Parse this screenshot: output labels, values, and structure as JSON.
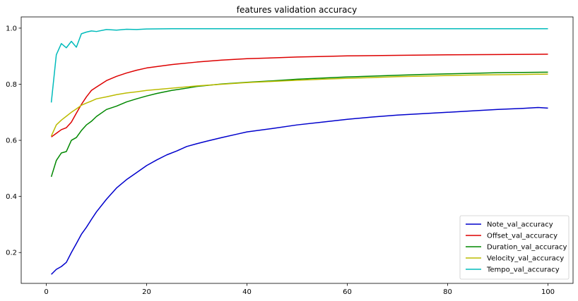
{
  "chart_data": {
    "type": "line",
    "title": "features validation accuracy",
    "xlabel": "",
    "ylabel": "",
    "xlim": [
      -5,
      105
    ],
    "ylim": [
      0.09,
      1.04
    ],
    "xticks": [
      0,
      20,
      40,
      60,
      80,
      100
    ],
    "yticks": [
      0.2,
      0.4,
      0.6,
      0.8,
      1.0
    ],
    "ytick_labels": [
      "0.2",
      "0.4",
      "0.6",
      "0.8",
      "1.0"
    ],
    "grid": false,
    "legend_position": "lower-right",
    "series": [
      {
        "name": "Note_val_accuracy",
        "color": "#0000cc",
        "points": [
          [
            1,
            0.122
          ],
          [
            2,
            0.14
          ],
          [
            3,
            0.15
          ],
          [
            4,
            0.165
          ],
          [
            5,
            0.2
          ],
          [
            6,
            0.232
          ],
          [
            7,
            0.265
          ],
          [
            8,
            0.29
          ],
          [
            9,
            0.318
          ],
          [
            10,
            0.345
          ],
          [
            12,
            0.39
          ],
          [
            14,
            0.43
          ],
          [
            16,
            0.46
          ],
          [
            18,
            0.485
          ],
          [
            20,
            0.51
          ],
          [
            22,
            0.53
          ],
          [
            24,
            0.548
          ],
          [
            26,
            0.562
          ],
          [
            28,
            0.578
          ],
          [
            30,
            0.588
          ],
          [
            32,
            0.597
          ],
          [
            35,
            0.61
          ],
          [
            38,
            0.622
          ],
          [
            40,
            0.63
          ],
          [
            45,
            0.642
          ],
          [
            50,
            0.655
          ],
          [
            55,
            0.665
          ],
          [
            60,
            0.675
          ],
          [
            65,
            0.683
          ],
          [
            70,
            0.69
          ],
          [
            75,
            0.695
          ],
          [
            80,
            0.7
          ],
          [
            85,
            0.705
          ],
          [
            90,
            0.71
          ],
          [
            95,
            0.714
          ],
          [
            98,
            0.717
          ],
          [
            100,
            0.715
          ]
        ]
      },
      {
        "name": "Offset_val_accuracy",
        "color": "#dd0000",
        "points": [
          [
            1,
            0.612
          ],
          [
            2,
            0.625
          ],
          [
            3,
            0.638
          ],
          [
            4,
            0.645
          ],
          [
            5,
            0.665
          ],
          [
            6,
            0.697
          ],
          [
            7,
            0.728
          ],
          [
            8,
            0.755
          ],
          [
            9,
            0.778
          ],
          [
            10,
            0.79
          ],
          [
            12,
            0.813
          ],
          [
            14,
            0.828
          ],
          [
            16,
            0.84
          ],
          [
            18,
            0.85
          ],
          [
            20,
            0.858
          ],
          [
            25,
            0.87
          ],
          [
            30,
            0.879
          ],
          [
            35,
            0.886
          ],
          [
            40,
            0.891
          ],
          [
            45,
            0.894
          ],
          [
            50,
            0.897
          ],
          [
            55,
            0.899
          ],
          [
            60,
            0.901
          ],
          [
            70,
            0.903
          ],
          [
            80,
            0.905
          ],
          [
            90,
            0.906
          ],
          [
            100,
            0.907
          ]
        ]
      },
      {
        "name": "Duration_val_accuracy",
        "color": "#008800",
        "points": [
          [
            1,
            0.47
          ],
          [
            2,
            0.528
          ],
          [
            3,
            0.555
          ],
          [
            4,
            0.56
          ],
          [
            5,
            0.6
          ],
          [
            6,
            0.61
          ],
          [
            7,
            0.635
          ],
          [
            8,
            0.655
          ],
          [
            9,
            0.668
          ],
          [
            10,
            0.685
          ],
          [
            12,
            0.71
          ],
          [
            14,
            0.722
          ],
          [
            16,
            0.737
          ],
          [
            18,
            0.748
          ],
          [
            20,
            0.758
          ],
          [
            22,
            0.767
          ],
          [
            25,
            0.778
          ],
          [
            28,
            0.786
          ],
          [
            30,
            0.792
          ],
          [
            35,
            0.801
          ],
          [
            40,
            0.807
          ],
          [
            45,
            0.812
          ],
          [
            50,
            0.818
          ],
          [
            55,
            0.822
          ],
          [
            60,
            0.826
          ],
          [
            65,
            0.829
          ],
          [
            70,
            0.832
          ],
          [
            75,
            0.835
          ],
          [
            80,
            0.837
          ],
          [
            85,
            0.839
          ],
          [
            90,
            0.841
          ],
          [
            95,
            0.842
          ],
          [
            100,
            0.843
          ]
        ]
      },
      {
        "name": "Velocity_val_accuracy",
        "color": "#bbbb00",
        "points": [
          [
            1,
            0.615
          ],
          [
            2,
            0.655
          ],
          [
            3,
            0.672
          ],
          [
            4,
            0.686
          ],
          [
            5,
            0.7
          ],
          [
            6,
            0.712
          ],
          [
            7,
            0.725
          ],
          [
            8,
            0.733
          ],
          [
            9,
            0.74
          ],
          [
            10,
            0.748
          ],
          [
            12,
            0.755
          ],
          [
            14,
            0.763
          ],
          [
            16,
            0.769
          ],
          [
            18,
            0.773
          ],
          [
            20,
            0.778
          ],
          [
            25,
            0.786
          ],
          [
            30,
            0.794
          ],
          [
            35,
            0.8
          ],
          [
            40,
            0.806
          ],
          [
            45,
            0.81
          ],
          [
            50,
            0.814
          ],
          [
            55,
            0.818
          ],
          [
            60,
            0.821
          ],
          [
            65,
            0.824
          ],
          [
            70,
            0.827
          ],
          [
            75,
            0.829
          ],
          [
            80,
            0.831
          ],
          [
            85,
            0.833
          ],
          [
            90,
            0.834
          ],
          [
            95,
            0.835
          ],
          [
            100,
            0.836
          ]
        ]
      },
      {
        "name": "Tempo_val_accuracy",
        "color": "#00bbbb",
        "points": [
          [
            1,
            0.735
          ],
          [
            2,
            0.905
          ],
          [
            3,
            0.945
          ],
          [
            4,
            0.93
          ],
          [
            5,
            0.953
          ],
          [
            6,
            0.932
          ],
          [
            7,
            0.98
          ],
          [
            8,
            0.986
          ],
          [
            9,
            0.99
          ],
          [
            10,
            0.988
          ],
          [
            12,
            0.995
          ],
          [
            14,
            0.993
          ],
          [
            16,
            0.996
          ],
          [
            18,
            0.995
          ],
          [
            20,
            0.997
          ],
          [
            25,
            0.998
          ],
          [
            30,
            0.998
          ],
          [
            40,
            0.998
          ],
          [
            50,
            0.998
          ],
          [
            60,
            0.998
          ],
          [
            70,
            0.998
          ],
          [
            80,
            0.998
          ],
          [
            90,
            0.998
          ],
          [
            100,
            0.998
          ]
        ]
      }
    ]
  }
}
